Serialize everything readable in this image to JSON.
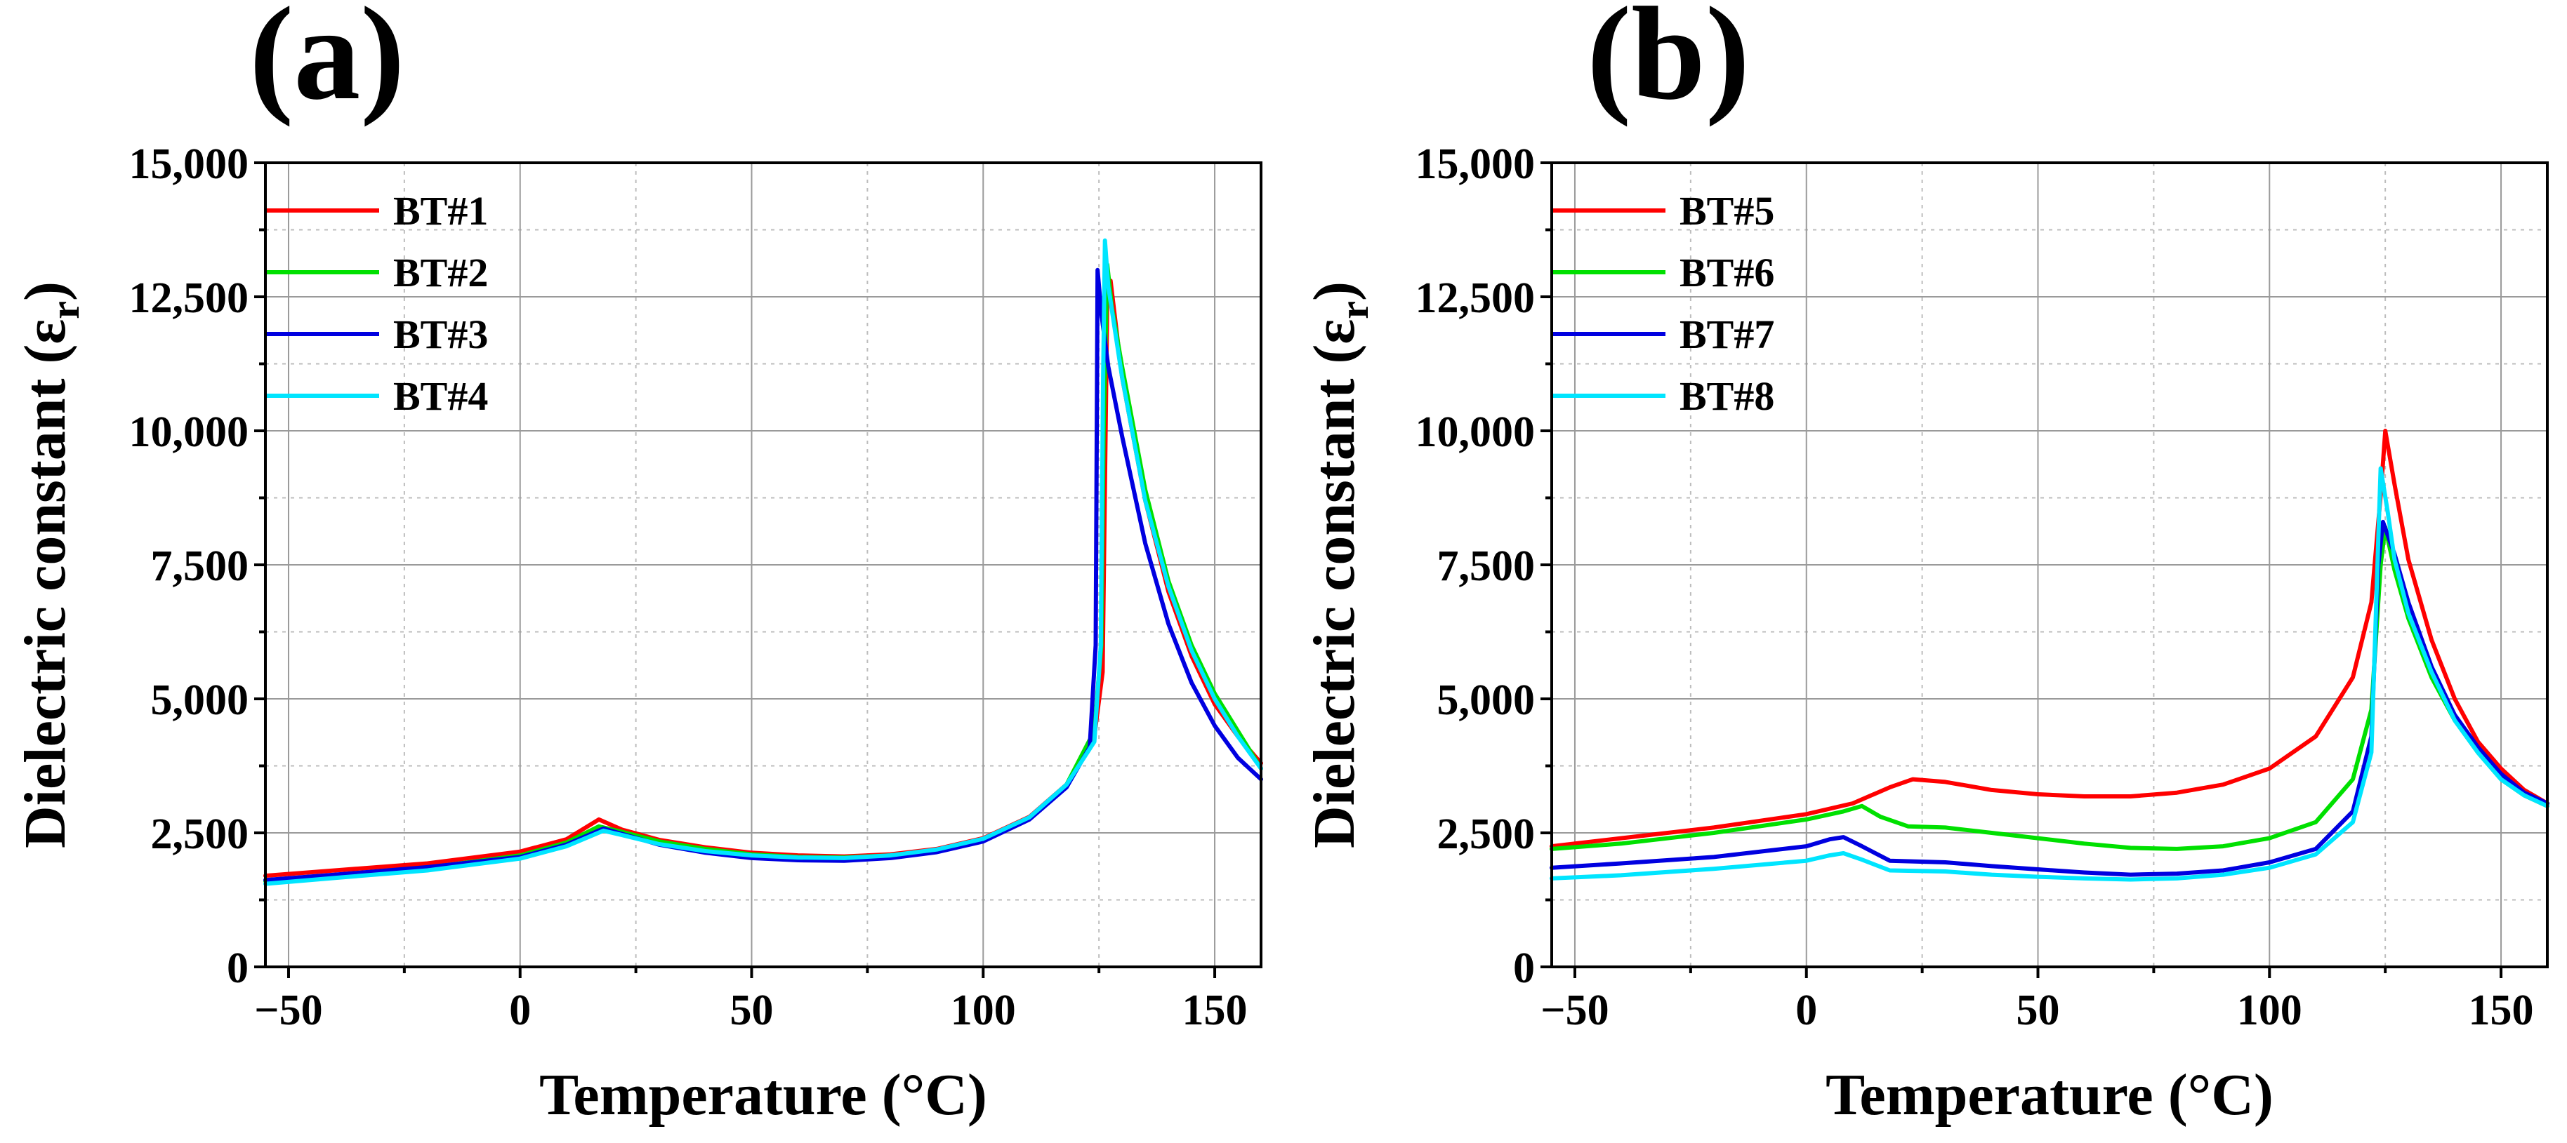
{
  "chart_data": [
    {
      "type": "line",
      "panel_label": "(a)",
      "xlabel": "Temperature (°C)",
      "ylabel_main": "Dielectric constant (ε",
      "ylabel_sub": "r",
      "ylabel_close": ")",
      "xlim": [
        -55,
        160
      ],
      "ylim": [
        0,
        15000
      ],
      "x_ticks": [
        -50,
        0,
        50,
        100,
        150
      ],
      "x_tick_labels": [
        "−50",
        "0",
        "50",
        "100",
        "150"
      ],
      "y_ticks": [
        0,
        2500,
        5000,
        7500,
        10000,
        12500,
        15000
      ],
      "y_tick_labels": [
        "0",
        "2,500",
        "5,000",
        "7,500",
        "10,000",
        "12,500",
        "15,000"
      ],
      "grid": true,
      "legend_position": "top-left",
      "series": [
        {
          "name": "BT#1",
          "color": "#ff0000",
          "points": [
            [
              -55,
              1700
            ],
            [
              -40,
              1800
            ],
            [
              -20,
              1930
            ],
            [
              0,
              2150
            ],
            [
              10,
              2380
            ],
            [
              17,
              2750
            ],
            [
              22,
              2560
            ],
            [
              30,
              2370
            ],
            [
              40,
              2230
            ],
            [
              50,
              2130
            ],
            [
              60,
              2080
            ],
            [
              70,
              2060
            ],
            [
              80,
              2100
            ],
            [
              90,
              2200
            ],
            [
              100,
              2400
            ],
            [
              110,
              2800
            ],
            [
              118,
              3400
            ],
            [
              124,
              4300
            ],
            [
              125.8,
              5500
            ],
            [
              126.3,
              9000
            ],
            [
              126.8,
              12500
            ],
            [
              127.5,
              12800
            ],
            [
              130,
              11000
            ],
            [
              135,
              8700
            ],
            [
              140,
              7000
            ],
            [
              145,
              5800
            ],
            [
              150,
              4900
            ],
            [
              155,
              4300
            ],
            [
              160,
              3800
            ]
          ]
        },
        {
          "name": "BT#2",
          "color": "#00e000",
          "points": [
            [
              -55,
              1600
            ],
            [
              -40,
              1700
            ],
            [
              -20,
              1850
            ],
            [
              0,
              2080
            ],
            [
              10,
              2320
            ],
            [
              17,
              2620
            ],
            [
              22,
              2520
            ],
            [
              30,
              2340
            ],
            [
              40,
              2200
            ],
            [
              50,
              2100
            ],
            [
              60,
              2050
            ],
            [
              70,
              2040
            ],
            [
              80,
              2080
            ],
            [
              90,
              2180
            ],
            [
              100,
              2380
            ],
            [
              110,
              2780
            ],
            [
              118,
              3400
            ],
            [
              124,
              4400
            ],
            [
              125.5,
              6000
            ],
            [
              126,
              10000
            ],
            [
              126.8,
              13100
            ],
            [
              127.8,
              12300
            ],
            [
              130,
              11200
            ],
            [
              135,
              8900
            ],
            [
              140,
              7200
            ],
            [
              145,
              6000
            ],
            [
              150,
              5100
            ],
            [
              155,
              4400
            ],
            [
              160,
              3700
            ]
          ]
        },
        {
          "name": "BT#3",
          "color": "#0000e0",
          "points": [
            [
              -55,
              1620
            ],
            [
              -40,
              1720
            ],
            [
              -20,
              1860
            ],
            [
              0,
              2050
            ],
            [
              10,
              2280
            ],
            [
              18,
              2580
            ],
            [
              22,
              2480
            ],
            [
              30,
              2280
            ],
            [
              40,
              2130
            ],
            [
              50,
              2030
            ],
            [
              60,
              1990
            ],
            [
              70,
              1980
            ],
            [
              80,
              2030
            ],
            [
              90,
              2140
            ],
            [
              100,
              2340
            ],
            [
              110,
              2750
            ],
            [
              118,
              3350
            ],
            [
              123,
              4100
            ],
            [
              124.3,
              6000
            ],
            [
              124.7,
              13000
            ],
            [
              125.5,
              12200
            ],
            [
              127,
              11200
            ],
            [
              130,
              9900
            ],
            [
              135,
              7900
            ],
            [
              140,
              6400
            ],
            [
              145,
              5300
            ],
            [
              150,
              4500
            ],
            [
              155,
              3900
            ],
            [
              160,
              3500
            ]
          ]
        },
        {
          "name": "BT#4",
          "color": "#00e5ff",
          "points": [
            [
              -55,
              1550
            ],
            [
              -40,
              1660
            ],
            [
              -20,
              1800
            ],
            [
              0,
              2020
            ],
            [
              10,
              2250
            ],
            [
              18,
              2540
            ],
            [
              22,
              2460
            ],
            [
              30,
              2290
            ],
            [
              40,
              2160
            ],
            [
              50,
              2080
            ],
            [
              60,
              2040
            ],
            [
              70,
              2030
            ],
            [
              80,
              2080
            ],
            [
              90,
              2190
            ],
            [
              100,
              2390
            ],
            [
              110,
              2790
            ],
            [
              118,
              3400
            ],
            [
              124,
              4200
            ],
            [
              125.4,
              6000
            ],
            [
              125.9,
              11000
            ],
            [
              126.3,
              13550
            ],
            [
              127,
              12700
            ],
            [
              130,
              11000
            ],
            [
              135,
              8700
            ],
            [
              140,
              7100
            ],
            [
              145,
              5900
            ],
            [
              150,
              5000
            ],
            [
              155,
              4300
            ],
            [
              160,
              3700
            ]
          ]
        }
      ]
    },
    {
      "type": "line",
      "panel_label": "(b)",
      "xlabel": "Temperature (°C)",
      "ylabel_main": "Dielectric constant (ε",
      "ylabel_sub": "r",
      "ylabel_close": ")",
      "xlim": [
        -55,
        160
      ],
      "ylim": [
        0,
        15000
      ],
      "x_ticks": [
        -50,
        0,
        50,
        100,
        150
      ],
      "x_tick_labels": [
        "−50",
        "0",
        "50",
        "100",
        "150"
      ],
      "y_ticks": [
        0,
        2500,
        5000,
        7500,
        10000,
        12500,
        15000
      ],
      "y_tick_labels": [
        "0",
        "2,500",
        "5,000",
        "7,500",
        "10,000",
        "12,500",
        "15,000"
      ],
      "grid": true,
      "legend_position": "top-left",
      "series": [
        {
          "name": "BT#5",
          "color": "#ff0000",
          "points": [
            [
              -55,
              2250
            ],
            [
              -40,
              2400
            ],
            [
              -20,
              2600
            ],
            [
              0,
              2850
            ],
            [
              10,
              3050
            ],
            [
              18,
              3350
            ],
            [
              23,
              3500
            ],
            [
              30,
              3450
            ],
            [
              40,
              3300
            ],
            [
              50,
              3220
            ],
            [
              60,
              3180
            ],
            [
              70,
              3180
            ],
            [
              80,
              3250
            ],
            [
              90,
              3400
            ],
            [
              100,
              3700
            ],
            [
              110,
              4300
            ],
            [
              118,
              5400
            ],
            [
              122,
              6800
            ],
            [
              124,
              8800
            ],
            [
              125,
              10000
            ],
            [
              127,
              9000
            ],
            [
              130,
              7600
            ],
            [
              135,
              6100
            ],
            [
              140,
              5000
            ],
            [
              145,
              4200
            ],
            [
              150,
              3700
            ],
            [
              155,
              3300
            ],
            [
              160,
              3050
            ]
          ]
        },
        {
          "name": "BT#6",
          "color": "#00e000",
          "points": [
            [
              -55,
              2200
            ],
            [
              -40,
              2300
            ],
            [
              -20,
              2500
            ],
            [
              0,
              2750
            ],
            [
              8,
              2900
            ],
            [
              12,
              3000
            ],
            [
              16,
              2800
            ],
            [
              22,
              2620
            ],
            [
              30,
              2600
            ],
            [
              40,
              2500
            ],
            [
              50,
              2400
            ],
            [
              60,
              2300
            ],
            [
              70,
              2220
            ],
            [
              80,
              2200
            ],
            [
              90,
              2250
            ],
            [
              100,
              2400
            ],
            [
              110,
              2700
            ],
            [
              118,
              3500
            ],
            [
              122,
              4800
            ],
            [
              124,
              7500
            ],
            [
              125,
              8200
            ],
            [
              127,
              7400
            ],
            [
              130,
              6500
            ],
            [
              135,
              5400
            ],
            [
              140,
              4600
            ],
            [
              145,
              4000
            ],
            [
              150,
              3500
            ],
            [
              155,
              3200
            ],
            [
              160,
              3000
            ]
          ]
        },
        {
          "name": "BT#7",
          "color": "#0000e0",
          "points": [
            [
              -55,
              1850
            ],
            [
              -40,
              1930
            ],
            [
              -20,
              2050
            ],
            [
              0,
              2250
            ],
            [
              5,
              2380
            ],
            [
              8,
              2420
            ],
            [
              12,
              2250
            ],
            [
              18,
              1980
            ],
            [
              30,
              1950
            ],
            [
              40,
              1880
            ],
            [
              50,
              1820
            ],
            [
              60,
              1760
            ],
            [
              70,
              1720
            ],
            [
              80,
              1740
            ],
            [
              90,
              1800
            ],
            [
              100,
              1950
            ],
            [
              110,
              2200
            ],
            [
              118,
              2900
            ],
            [
              122,
              4300
            ],
            [
              123.5,
              7500
            ],
            [
              124.5,
              8300
            ],
            [
              127,
              7700
            ],
            [
              130,
              6800
            ],
            [
              135,
              5600
            ],
            [
              140,
              4700
            ],
            [
              145,
              4100
            ],
            [
              150,
              3600
            ],
            [
              155,
              3250
            ],
            [
              160,
              3050
            ]
          ]
        },
        {
          "name": "BT#8",
          "color": "#00e5ff",
          "points": [
            [
              -55,
              1650
            ],
            [
              -40,
              1710
            ],
            [
              -20,
              1830
            ],
            [
              0,
              1980
            ],
            [
              5,
              2080
            ],
            [
              8,
              2120
            ],
            [
              12,
              2000
            ],
            [
              18,
              1800
            ],
            [
              30,
              1780
            ],
            [
              40,
              1720
            ],
            [
              50,
              1680
            ],
            [
              60,
              1650
            ],
            [
              70,
              1630
            ],
            [
              80,
              1650
            ],
            [
              90,
              1720
            ],
            [
              100,
              1850
            ],
            [
              110,
              2100
            ],
            [
              118,
              2700
            ],
            [
              122,
              4000
            ],
            [
              123.5,
              8000
            ],
            [
              124,
              9300
            ],
            [
              125.5,
              8500
            ],
            [
              127,
              7600
            ],
            [
              130,
              6600
            ],
            [
              135,
              5500
            ],
            [
              140,
              4600
            ],
            [
              145,
              4000
            ],
            [
              150,
              3500
            ],
            [
              155,
              3200
            ],
            [
              160,
              3000
            ]
          ]
        }
      ]
    }
  ]
}
